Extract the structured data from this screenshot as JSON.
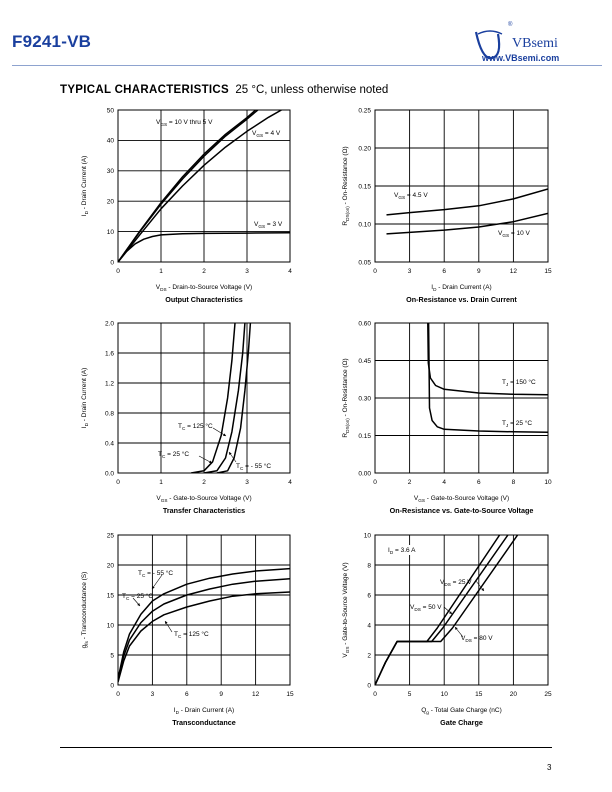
{
  "header": {
    "part_number": "F9241-VB",
    "brand": "VBsemi",
    "website": "www.VBsemi.com",
    "logo_mark": "®",
    "colors": {
      "brand": "#1a3f9e"
    }
  },
  "section": {
    "title": "TYPICAL CHARACTERISTICS",
    "subtitle": "25 °C, unless otherwise noted"
  },
  "footer": {
    "page_number": "3"
  },
  "chart_data": [
    {
      "type": "line",
      "title": "Output Characteristics",
      "xlabel": "VDS - Drain-to-Source Voltage (V)",
      "ylabel": "ID - Drain Current (A)",
      "xlim": [
        0,
        4
      ],
      "ylim": [
        0,
        50
      ],
      "xticks": [
        "0",
        "1",
        "2",
        "3",
        "4"
      ],
      "yticks": [
        "0",
        "10",
        "20",
        "30",
        "40",
        "50"
      ],
      "grid": true,
      "series": [
        {
          "name": "VGS = 10 V thru 5 V",
          "points": [
            [
              0,
              0
            ],
            [
              0.5,
              10
            ],
            [
              1,
              19.5
            ],
            [
              1.5,
              28
            ],
            [
              2,
              35.5
            ],
            [
              2.5,
              42
            ],
            [
              3,
              47.5
            ],
            [
              3.2,
              50
            ]
          ]
        },
        {
          "points": [
            [
              0,
              0
            ],
            [
              0.5,
              9.8
            ],
            [
              1,
              19
            ],
            [
              1.5,
              27.3
            ],
            [
              2,
              34.8
            ],
            [
              2.5,
              41.4
            ],
            [
              3,
              47
            ],
            [
              3.25,
              50
            ]
          ]
        },
        {
          "name": "VGS = 4 V",
          "points": [
            [
              0,
              0
            ],
            [
              0.5,
              8.8
            ],
            [
              1,
              17.5
            ],
            [
              1.5,
              25
            ],
            [
              2,
              31.8
            ],
            [
              2.5,
              37.8
            ],
            [
              3,
              43
            ],
            [
              3.5,
              47.6
            ],
            [
              3.8,
              50
            ]
          ]
        },
        {
          "name": "VGS = 3 V",
          "points": [
            [
              0,
              0
            ],
            [
              0.2,
              3.5
            ],
            [
              0.4,
              6
            ],
            [
              0.6,
              7.5
            ],
            [
              0.8,
              8.4
            ],
            [
              1,
              8.9
            ],
            [
              1.5,
              9.3
            ],
            [
              2,
              9.4
            ],
            [
              3,
              9.5
            ],
            [
              4,
              9.6
            ]
          ]
        }
      ]
    },
    {
      "type": "line",
      "title": "On-Resistance vs. Drain Current",
      "xlabel": "ID - Drain Current (A)",
      "ylabel": "RDS(on) - On-Resistance (Ω)",
      "xlim": [
        0,
        15
      ],
      "ylim": [
        0.05,
        0.25
      ],
      "xticks": [
        "0",
        "3",
        "6",
        "9",
        "12",
        "15"
      ],
      "yticks": [
        "0.05",
        "0.10",
        "0.15",
        "0.20",
        "0.25"
      ],
      "grid": true,
      "series": [
        {
          "name": "VGS = 4.5 V",
          "points": [
            [
              1,
              0.112
            ],
            [
              3,
              0.115
            ],
            [
              6,
              0.119
            ],
            [
              9,
              0.124
            ],
            [
              12,
              0.133
            ],
            [
              15,
              0.146
            ],
            [
              15.5,
              0.149
            ]
          ]
        },
        {
          "name": "VGS = 10 V",
          "points": [
            [
              1,
              0.087
            ],
            [
              3,
              0.089
            ],
            [
              6,
              0.092
            ],
            [
              9,
              0.096
            ],
            [
              12,
              0.103
            ],
            [
              15,
              0.114
            ],
            [
              15.5,
              0.117
            ]
          ]
        }
      ]
    },
    {
      "type": "line",
      "title": "Transfer Characteristics",
      "xlabel": "VGS - Gate-to-Source Voltage (V)",
      "ylabel": "ID - Drain Current (A)",
      "xlim": [
        0,
        4
      ],
      "ylim": [
        0,
        2.0
      ],
      "xticks": [
        "0",
        "1",
        "2",
        "3",
        "4"
      ],
      "yticks": [
        "0.0",
        "0.4",
        "0.8",
        "1.2",
        "1.6",
        "2.0"
      ],
      "grid": true,
      "series": [
        {
          "name": "TC = 125 °C",
          "points": [
            [
              1.7,
              0
            ],
            [
              2.0,
              0.03
            ],
            [
              2.2,
              0.15
            ],
            [
              2.4,
              0.5
            ],
            [
              2.55,
              1.0
            ],
            [
              2.65,
              1.5
            ],
            [
              2.72,
              2.0
            ]
          ]
        },
        {
          "name": "TC = 25 °C",
          "points": [
            [
              2.0,
              0
            ],
            [
              2.3,
              0.03
            ],
            [
              2.5,
              0.2
            ],
            [
              2.65,
              0.55
            ],
            [
              2.8,
              1.1
            ],
            [
              2.9,
              1.6
            ],
            [
              2.95,
              2.0
            ]
          ]
        },
        {
          "name": "TC = - 55 °C",
          "points": [
            [
              2.3,
              0
            ],
            [
              2.55,
              0.03
            ],
            [
              2.7,
              0.2
            ],
            [
              2.85,
              0.6
            ],
            [
              2.95,
              1.1
            ],
            [
              3.03,
              1.6
            ],
            [
              3.08,
              2.0
            ]
          ]
        }
      ]
    },
    {
      "type": "line",
      "title": "On-Resistance vs. Gate-to-Source Voltage",
      "xlabel": "VGS - Gate-to-Source Voltage (V)",
      "ylabel": "RDS(on) - On-Resistance (Ω)",
      "xlim": [
        0,
        10
      ],
      "ylim": [
        0.0,
        0.6
      ],
      "xticks": [
        "0",
        "2",
        "4",
        "6",
        "8",
        "10"
      ],
      "yticks": [
        "0.00",
        "0.15",
        "0.30",
        "0.45",
        "0.60"
      ],
      "grid": true,
      "series": [
        {
          "name": "TJ = 150 °C",
          "points": [
            [
              3.05,
              0.6
            ],
            [
              3.08,
              0.44
            ],
            [
              3.2,
              0.38
            ],
            [
              3.5,
              0.35
            ],
            [
              4,
              0.335
            ],
            [
              6,
              0.32
            ],
            [
              8,
              0.315
            ],
            [
              10,
              0.313
            ]
          ]
        },
        {
          "name": "TJ = 25 °C",
          "points": [
            [
              3.1,
              0.6
            ],
            [
              3.15,
              0.26
            ],
            [
              3.3,
              0.21
            ],
            [
              3.6,
              0.185
            ],
            [
              4,
              0.175
            ],
            [
              6,
              0.168
            ],
            [
              8,
              0.165
            ],
            [
              10,
              0.163
            ]
          ]
        }
      ]
    },
    {
      "type": "line",
      "title": "Transconductance",
      "xlabel": "ID - Drain Current (A)",
      "ylabel": "gfs - Transconductance (S)",
      "xlim": [
        0,
        15
      ],
      "ylim": [
        0,
        25
      ],
      "xticks": [
        "0",
        "3",
        "6",
        "9",
        "12",
        "15"
      ],
      "yticks": [
        "0",
        "5",
        "10",
        "15",
        "20",
        "25"
      ],
      "grid": true,
      "series": [
        {
          "name": "TC = - 55 °C",
          "points": [
            [
              0,
              1
            ],
            [
              0.5,
              5.5
            ],
            [
              1,
              8.5
            ],
            [
              2,
              11.8
            ],
            [
              3,
              14
            ],
            [
              4,
              15.2
            ],
            [
              6,
              16.8
            ],
            [
              8,
              17.8
            ],
            [
              10,
              18.5
            ],
            [
              12,
              19
            ],
            [
              15,
              19.4
            ]
          ]
        },
        {
          "name": "TC = 25 °C",
          "points": [
            [
              0,
              1
            ],
            [
              0.5,
              4.8
            ],
            [
              1,
              7.5
            ],
            [
              2,
              10.4
            ],
            [
              3,
              12.3
            ],
            [
              4,
              13.5
            ],
            [
              6,
              15
            ],
            [
              8,
              16
            ],
            [
              10,
              16.8
            ],
            [
              12,
              17.3
            ],
            [
              15,
              17.7
            ]
          ]
        },
        {
          "name": "TC = 125 °C",
          "points": [
            [
              0,
              0.5
            ],
            [
              0.5,
              4
            ],
            [
              1,
              6.5
            ],
            [
              2,
              9
            ],
            [
              3,
              10.6
            ],
            [
              4,
              11.7
            ],
            [
              6,
              13
            ],
            [
              8,
              14
            ],
            [
              10,
              14.8
            ],
            [
              12,
              15.2
            ],
            [
              15,
              15.5
            ]
          ]
        }
      ]
    },
    {
      "type": "line",
      "title": "Gate Charge",
      "xlabel": "Qg - Total Gate Charge (nC)",
      "ylabel": "VGS - Gate-to-Source Voltage (V)",
      "xlim": [
        0,
        25
      ],
      "ylim": [
        0,
        10
      ],
      "xticks": [
        "0",
        "5",
        "10",
        "15",
        "20",
        "25"
      ],
      "yticks": [
        "0",
        "2",
        "4",
        "6",
        "8",
        "10"
      ],
      "grid": true,
      "annotation": "ID = 3.6 A",
      "series": [
        {
          "name": "VDS = 25 V",
          "points": [
            [
              0,
              0
            ],
            [
              1.5,
              1.5
            ],
            [
              3.2,
              2.9
            ],
            [
              7.5,
              2.9
            ],
            [
              9,
              3.8
            ],
            [
              18,
              10
            ]
          ]
        },
        {
          "name": "VDS = 50 V",
          "points": [
            [
              0,
              0
            ],
            [
              1.5,
              1.5
            ],
            [
              3.2,
              2.9
            ],
            [
              8.2,
              2.9
            ],
            [
              9.8,
              3.8
            ],
            [
              19.2,
              10
            ]
          ]
        },
        {
          "name": "VDS = 80 V",
          "points": [
            [
              0,
              0
            ],
            [
              1.5,
              1.5
            ],
            [
              3.2,
              2.9
            ],
            [
              9.5,
              2.9
            ],
            [
              11.2,
              3.8
            ],
            [
              20.6,
              10
            ]
          ]
        }
      ]
    }
  ]
}
